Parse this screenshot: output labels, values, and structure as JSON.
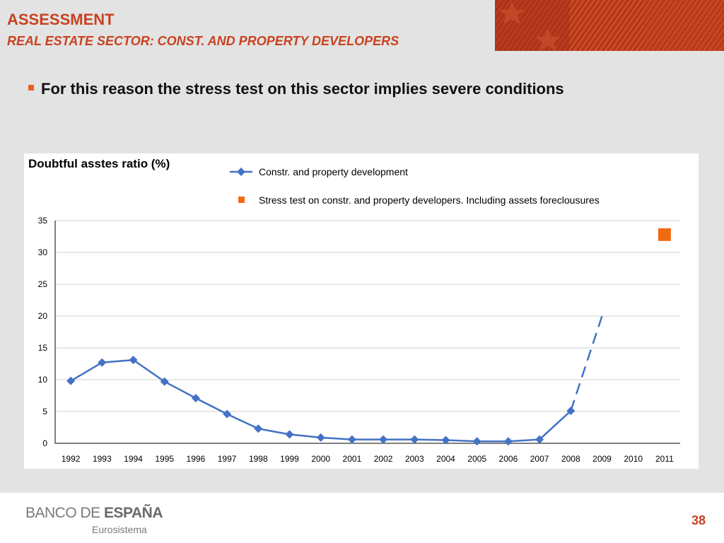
{
  "header": {
    "title": "ASSESSMENT",
    "subtitle": "REAL ESTATE SECTOR: CONST. AND PROPERTY DEVELOPERS"
  },
  "bullet": {
    "text": "For this reason the stress test on this sector implies severe conditions"
  },
  "colors": {
    "accent": "#c8421f",
    "series_line": "#4472c4",
    "stress_marker": "#f26a10"
  },
  "chart_data": {
    "type": "line",
    "title": "Doubtful asstes ratio (%)",
    "xlabel": "",
    "ylabel": "",
    "categories": [
      "1992",
      "1993",
      "1994",
      "1995",
      "1996",
      "1997",
      "1998",
      "1999",
      "2000",
      "2001",
      "2002",
      "2003",
      "2004",
      "2005",
      "2006",
      "2007",
      "2008",
      "2009",
      "2010",
      "2011"
    ],
    "ylim": [
      0,
      35
    ],
    "yticks": [
      0,
      5,
      10,
      15,
      20,
      25,
      30,
      35
    ],
    "grid": true,
    "legend": "top",
    "series": [
      {
        "name": "Constr. and property development",
        "values": [
          9.8,
          12.7,
          13.1,
          9.7,
          7.1,
          4.6,
          2.3,
          1.4,
          0.9,
          0.6,
          0.6,
          0.6,
          0.5,
          0.3,
          0.3,
          0.6,
          5.1,
          null,
          null,
          null
        ]
      },
      {
        "name": "",
        "style": "dashed projection",
        "x": [
          "2008",
          "2009"
        ],
        "values": [
          5.1,
          20
        ]
      },
      {
        "name": "Stress test on constr. and property developers. Including assets foreclousures",
        "marker": "square",
        "x": [
          "2011"
        ],
        "values": [
          32.8
        ]
      }
    ]
  },
  "footer": {
    "brand_left": "BANCO DE ",
    "brand_bold": "ESPAÑA",
    "brand_sub": "Eurosistema",
    "page_number": "38"
  }
}
